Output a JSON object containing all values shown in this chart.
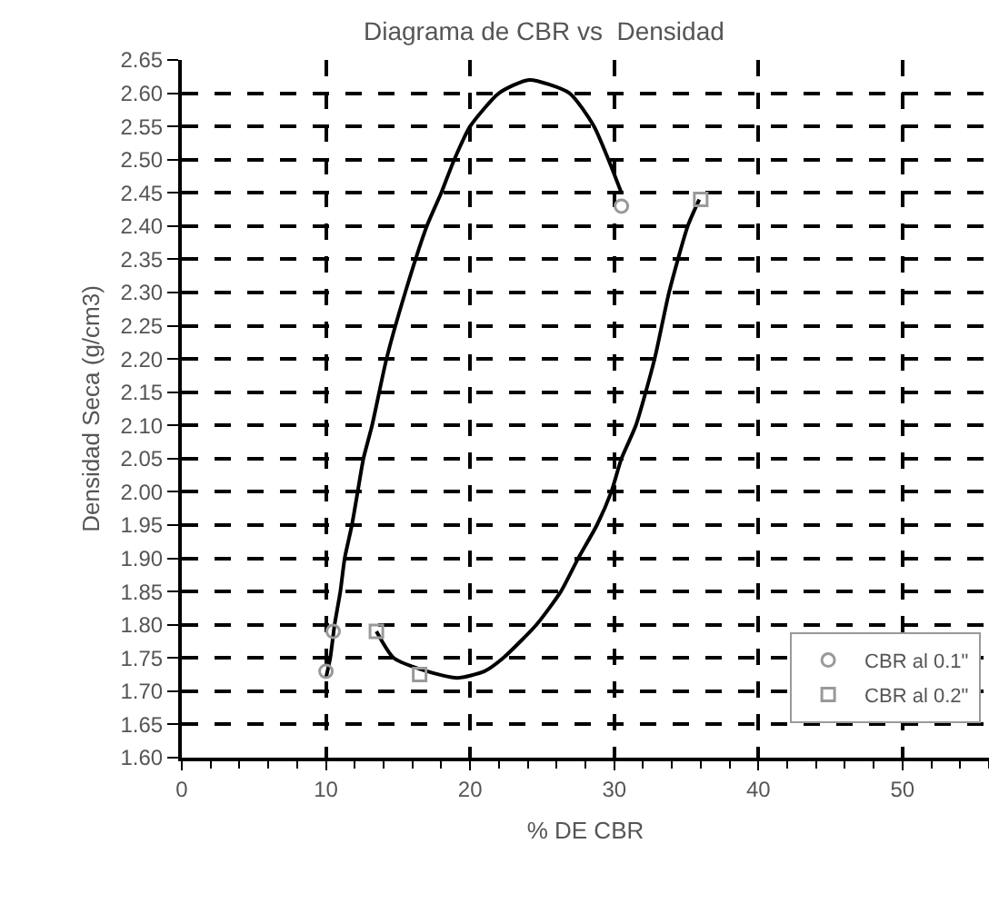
{
  "chart_data": {
    "type": "scatter",
    "title": "Diagrama de CBR vs  Densidad",
    "xlabel": "% DE CBR",
    "ylabel": "Densidad Seca (g/cm3)",
    "xlim": [
      0,
      56
    ],
    "xticks": [
      0,
      10,
      20,
      30,
      40,
      50
    ],
    "ylim": [
      1.6,
      2.65
    ],
    "yticks": [
      {
        "value": 1.6,
        "label": "1.60"
      },
      1.65,
      {
        "value": 1.7,
        "label": "1.70"
      },
      1.75,
      {
        "value": 1.8,
        "label": "1.80"
      },
      1.85,
      {
        "value": 1.9,
        "label": "1.90"
      },
      1.95,
      {
        "value": 2.0,
        "label": "2.00"
      },
      2.05,
      {
        "value": 2.1,
        "label": "2.10"
      },
      2.15,
      {
        "value": 2.2,
        "label": "2.20"
      },
      2.25,
      {
        "value": 2.3,
        "label": "2.30"
      },
      2.35,
      {
        "value": 2.4,
        "label": "2.40"
      },
      2.45,
      {
        "value": 2.5,
        "label": "2.50"
      },
      2.55,
      {
        "value": 2.6,
        "label": "2.60"
      },
      2.65
    ],
    "grid": true,
    "legend": "bottom right",
    "series": [
      {
        "type": "line",
        "color": "#000000",
        "marker": "none",
        "line_style": "solid",
        "x": [
          10,
          10.3,
          10.6,
          11,
          11.3,
          11.8,
          12.2,
          12.6,
          13.2,
          14.2,
          15.5,
          17,
          18,
          18.9,
          20,
          22,
          24.1,
          26.9,
          28.6,
          29.6,
          30.5
        ],
        "values": [
          1.72,
          1.75,
          1.8,
          1.85,
          1.9,
          1.95,
          2.0,
          2.05,
          2.1,
          2.2,
          2.3,
          2.4,
          2.45,
          2.5,
          2.55,
          2.6,
          2.62,
          2.6,
          2.55,
          2.5,
          2.45
        ]
      },
      {
        "type": "line",
        "color": "#000000",
        "marker": "none",
        "line_style": "solid",
        "x": [
          13.5,
          14.7,
          17,
          19.1,
          21,
          22.3,
          24.6,
          26.3,
          27.5,
          28.8,
          29.8,
          30.5,
          31.5,
          32.8,
          33.8,
          35.1,
          35.9
        ],
        "values": [
          1.79,
          1.75,
          1.73,
          1.72,
          1.73,
          1.75,
          1.8,
          1.85,
          1.9,
          1.95,
          2.0,
          2.05,
          2.1,
          2.2,
          2.3,
          2.4,
          2.44
        ]
      },
      {
        "type": "scatter",
        "name": "CBR al 0.1\"",
        "color": "#999999",
        "marker": "circle",
        "x": [
          10,
          10.5,
          30.5
        ],
        "values": [
          1.73,
          1.79,
          2.43
        ]
      },
      {
        "type": "scatter",
        "name": "CBR al 0.2\"",
        "color": "#999999",
        "marker": "square",
        "x": [
          13.5,
          16.5,
          36
        ],
        "values": [
          1.79,
          1.725,
          2.44
        ]
      }
    ]
  }
}
